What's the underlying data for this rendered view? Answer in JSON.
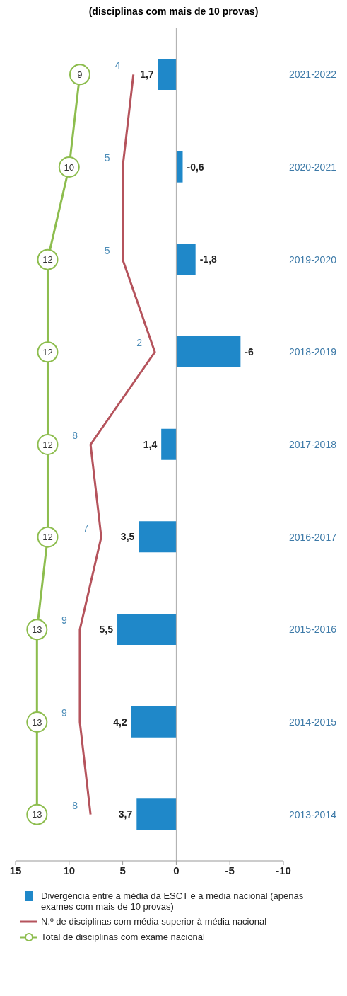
{
  "chart_data": {
    "type": "bar",
    "orientation": "horizontal",
    "title": "(disciplinas com mais de 10 provas)",
    "categories": [
      "2021-2022",
      "2020-2021",
      "2019-2020",
      "2018-2019",
      "2017-2018",
      "2016-2017",
      "2015-2016",
      "2014-2015",
      "2013-2014"
    ],
    "series": [
      {
        "name": "Divergência entre a média da ESCT e a média nacional (apenas exames com mais de 10 provas)",
        "color": "#1f88c9",
        "values": [
          1.7,
          -0.6,
          -1.8,
          -6,
          1.4,
          3.5,
          5.5,
          4.2,
          3.7
        ],
        "value_labels": [
          "1,7",
          "-0,6",
          "-1,8",
          "-6",
          "1,4",
          "3,5",
          "5,5",
          "4,2",
          "3,7"
        ]
      },
      {
        "name": "N.º de disciplinas com média superior à média nacional",
        "type": "line",
        "color": "#b5535c",
        "marker": "none",
        "values": [
          4,
          5,
          5,
          2,
          8,
          7,
          9,
          9,
          8
        ]
      },
      {
        "name": "Total de disciplinas com exame nacional",
        "type": "line",
        "color": "#8dbd4e",
        "marker": "circle",
        "values": [
          9,
          10,
          12,
          12,
          12,
          12,
          13,
          13,
          13
        ]
      }
    ],
    "xlim": [
      15,
      -10
    ],
    "xticks": [
      15,
      10,
      5,
      0,
      -5,
      -10
    ],
    "ref_lines": [
      {
        "axis": "x",
        "value": 0,
        "color": "#aaaaaa"
      }
    ],
    "grid": false,
    "legend": "bottom",
    "data_labels": true
  }
}
